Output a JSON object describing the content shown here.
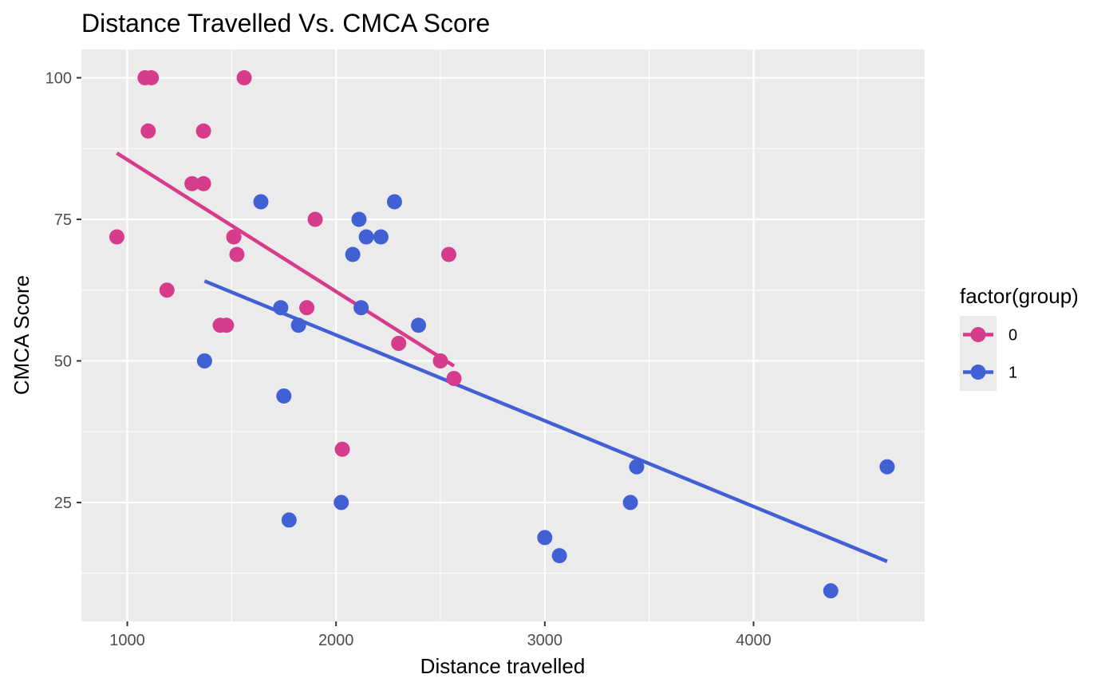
{
  "chart_data": {
    "type": "scatter",
    "title": "Distance Travelled Vs. CMCA Score",
    "xlabel": "Distance travelled",
    "ylabel": "CMCA Score",
    "xlim": [
      780,
      4820
    ],
    "ylim": [
      4,
      105
    ],
    "x_ticks": [
      1000,
      2000,
      3000,
      4000
    ],
    "x_tick_labels": [
      "1000",
      "2000",
      "3000",
      "4000"
    ],
    "y_ticks": [
      25,
      50,
      75,
      100
    ],
    "y_tick_labels": [
      "25",
      "50",
      "75",
      "100"
    ],
    "x_minor_ticks": [
      1500,
      2500,
      3500,
      4500
    ],
    "y_minor_ticks": [
      12.5,
      37.5,
      62.5,
      87.5
    ],
    "grid": true,
    "legend": {
      "title": "factor(group)",
      "position": "right"
    },
    "series": [
      {
        "name": "0",
        "color": "#d63c8b",
        "points": [
          {
            "x": 950,
            "y": 71.9
          },
          {
            "x": 1085,
            "y": 100
          },
          {
            "x": 1115,
            "y": 100
          },
          {
            "x": 1100,
            "y": 90.6
          },
          {
            "x": 1190,
            "y": 62.5
          },
          {
            "x": 1310,
            "y": 81.3
          },
          {
            "x": 1365,
            "y": 81.3
          },
          {
            "x": 1365,
            "y": 90.6
          },
          {
            "x": 1445,
            "y": 56.3
          },
          {
            "x": 1475,
            "y": 56.3
          },
          {
            "x": 1510,
            "y": 71.9
          },
          {
            "x": 1525,
            "y": 68.8
          },
          {
            "x": 1560,
            "y": 100
          },
          {
            "x": 1860,
            "y": 59.4
          },
          {
            "x": 1900,
            "y": 75
          },
          {
            "x": 2030,
            "y": 34.4
          },
          {
            "x": 2300,
            "y": 53.1
          },
          {
            "x": 2500,
            "y": 50
          },
          {
            "x": 2540,
            "y": 68.8
          },
          {
            "x": 2565,
            "y": 46.9
          }
        ],
        "trend": {
          "x": [
            950,
            2565
          ],
          "y": [
            86.7,
            49.1
          ]
        }
      },
      {
        "name": "1",
        "color": "#4160d4",
        "points": [
          {
            "x": 1370,
            "y": 50
          },
          {
            "x": 1640,
            "y": 78.1
          },
          {
            "x": 1735,
            "y": 59.4
          },
          {
            "x": 1750,
            "y": 43.8
          },
          {
            "x": 1775,
            "y": 21.9
          },
          {
            "x": 1820,
            "y": 56.3
          },
          {
            "x": 2025,
            "y": 25
          },
          {
            "x": 2080,
            "y": 68.8
          },
          {
            "x": 2110,
            "y": 75
          },
          {
            "x": 2120,
            "y": 59.4
          },
          {
            "x": 2145,
            "y": 71.9
          },
          {
            "x": 2215,
            "y": 71.9
          },
          {
            "x": 2280,
            "y": 78.1
          },
          {
            "x": 2395,
            "y": 56.3
          },
          {
            "x": 3000,
            "y": 18.8
          },
          {
            "x": 3070,
            "y": 15.6
          },
          {
            "x": 3410,
            "y": 25
          },
          {
            "x": 3440,
            "y": 31.3
          },
          {
            "x": 4370,
            "y": 9.4
          },
          {
            "x": 4640,
            "y": 31.3
          }
        ],
        "trend": {
          "x": [
            1370,
            4640
          ],
          "y": [
            64.1,
            14.6
          ]
        }
      }
    ]
  }
}
